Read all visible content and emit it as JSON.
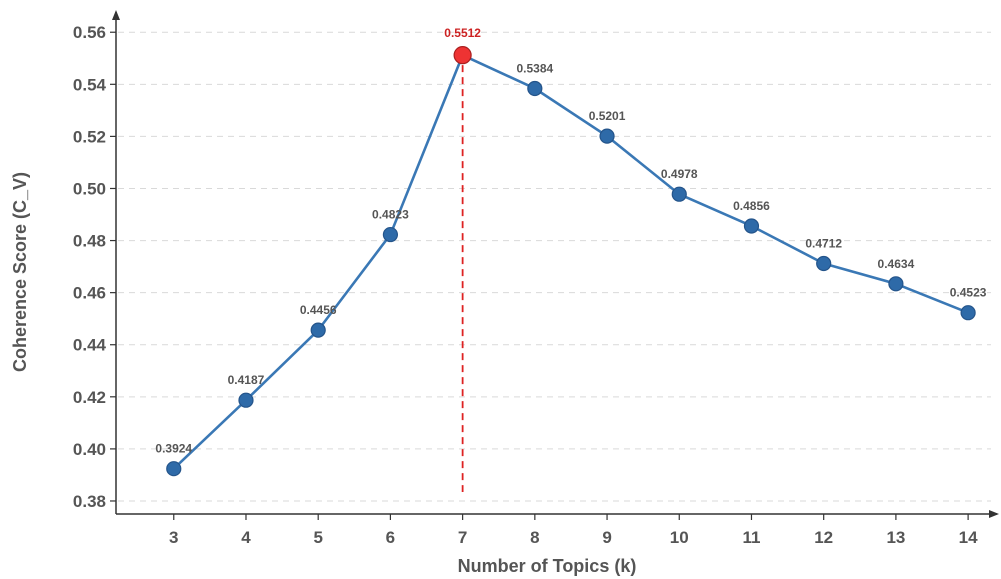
{
  "chart_data": {
    "type": "line",
    "title": "",
    "xlabel": "Number of Topics (k)",
    "ylabel": "Coherence Score (C_V)",
    "x": [
      3,
      4,
      5,
      6,
      7,
      8,
      9,
      10,
      11,
      12,
      13,
      14
    ],
    "x_tick_labels": [
      "3",
      "4",
      "5",
      "6",
      "7",
      "8",
      "9",
      "10",
      "11",
      "12",
      "13",
      "14"
    ],
    "y_tick_values": [
      0.38,
      0.4,
      0.42,
      0.44,
      0.46,
      0.48,
      0.5,
      0.52,
      0.54,
      0.56
    ],
    "y_tick_labels": [
      "0.38",
      "0.40",
      "0.42",
      "0.44",
      "0.46",
      "0.48",
      "0.50",
      "0.52",
      "0.54",
      "0.56"
    ],
    "ylim": [
      0.375,
      0.567
    ],
    "xlim": [
      2.2,
      14.4
    ],
    "grid": "horizontal dashed",
    "series": [
      {
        "values": [
          0.3924,
          0.4187,
          0.4456,
          0.4823,
          0.5512,
          0.5384,
          0.5201,
          0.4978,
          0.4856,
          0.4712,
          0.4634,
          0.4523
        ],
        "data_labels": [
          "0.3924",
          "0.4187",
          "0.4456",
          "0.4823",
          "0.5512",
          "0.5384",
          "0.5201",
          "0.4978",
          "0.4856",
          "0.4712",
          "0.4634",
          "0.4523"
        ],
        "color": "#3a78b5",
        "marker_color": "#2e6aa8"
      }
    ],
    "highlight": {
      "x": 7,
      "value": 0.5512,
      "marker_color": "#ee3333",
      "label_color": "#cc2222",
      "line_style": "vertical dashed",
      "line_color": "#dd2222"
    }
  }
}
